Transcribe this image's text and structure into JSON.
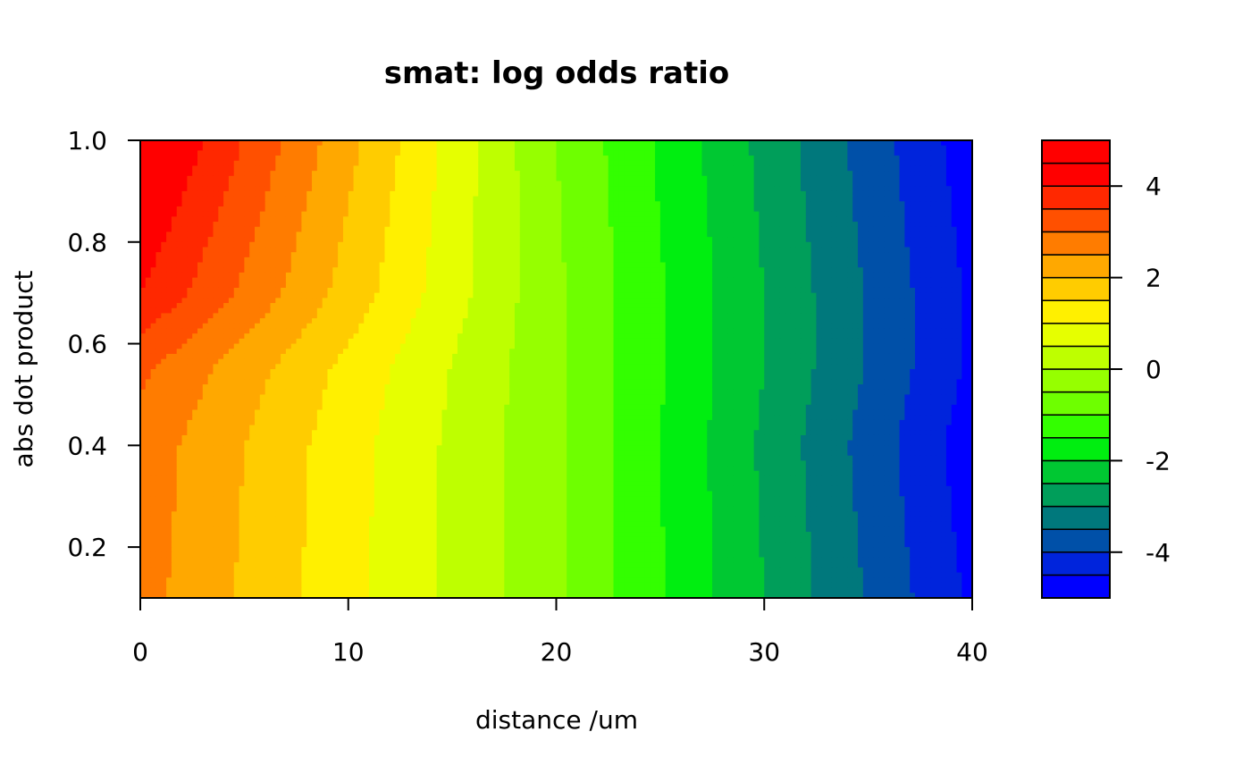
{
  "chart_data": {
    "type": "heatmap",
    "subtype": "filled-contour",
    "title": "smat: log odds ratio",
    "xlabel": "distance /um",
    "ylabel": "abs dot product",
    "xlim": [
      0,
      40
    ],
    "ylim": [
      0.1,
      1.0
    ],
    "x_ticks": [
      "0",
      "10",
      "20",
      "30",
      "40"
    ],
    "y_ticks": [
      "0.2",
      "0.4",
      "0.6",
      "0.8",
      "1.0"
    ],
    "legend_ticks": [
      "-4",
      "-2",
      "0",
      "2",
      "4"
    ],
    "legend_placement": "right",
    "legend_range": [
      -5,
      5
    ],
    "levels": [
      -5.0,
      -4.5,
      -4.0,
      -3.5,
      -3.0,
      -2.5,
      -2.0,
      -1.5,
      -1.0,
      -0.5,
      0.0,
      0.5,
      1.0,
      1.5,
      2.0,
      2.5,
      3.0,
      3.5,
      4.0,
      4.5,
      5.0
    ],
    "level_colors": [
      "#0000FF",
      "#0024DC",
      "#0050A8",
      "#00787C",
      "#009E5A",
      "#00C832",
      "#00EE10",
      "#33FF00",
      "#6EFF00",
      "#96FF00",
      "#BEFF00",
      "#E6FF00",
      "#FFF000",
      "#FFCC00",
      "#FFA800",
      "#FF7C00",
      "#FF5000",
      "#FF2800",
      "#FF0000",
      "#FF0000"
    ],
    "grid": "none",
    "x": [
      0,
      20,
      40
    ],
    "y": [
      0.1,
      0.4,
      0.55,
      0.7,
      1.0
    ],
    "z": [
      [
        2.7,
        -0.4,
        -4.6
      ],
      [
        2.8,
        -0.4,
        -4.8
      ],
      [
        3.1,
        -0.4,
        -4.6
      ],
      [
        4.0,
        -0.4,
        -4.6
      ],
      [
        4.8,
        -0.5,
        -4.8
      ]
    ]
  }
}
